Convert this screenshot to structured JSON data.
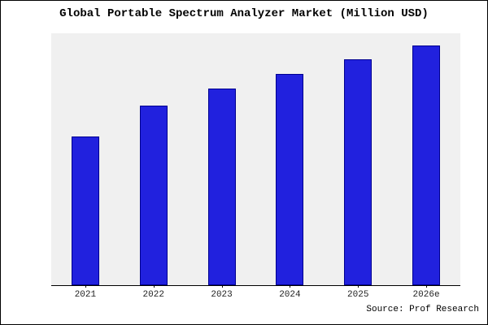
{
  "title": "Global Portable Spectrum Analyzer Market (Million USD)",
  "source": "Source: Prof Research",
  "colors": {
    "bar": "#2121de",
    "bar_border": "#000090",
    "plot_bg": "#f0f0f0"
  },
  "chart_data": {
    "type": "bar",
    "title": "Global Portable Spectrum Analyzer Market (Million USD)",
    "categories": [
      "2021",
      "2022",
      "2023",
      "2024",
      "2025",
      "2026e"
    ],
    "values": [
      62,
      75,
      82,
      88,
      94,
      100
    ],
    "xlabel": "",
    "ylabel": "",
    "ylim": [
      0,
      105
    ],
    "grid": false,
    "legend": false,
    "y_axis_labels_visible": false,
    "annotation": "Source: Prof Research"
  }
}
